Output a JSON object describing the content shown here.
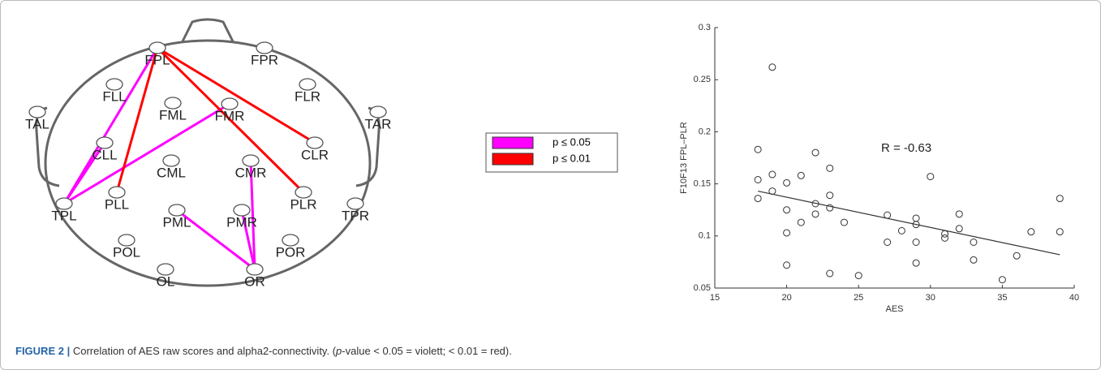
{
  "diagram": {
    "nodes": [
      {
        "label": "FPL"
      },
      {
        "label": "FPR"
      },
      {
        "label": "FLL"
      },
      {
        "label": "FLR"
      },
      {
        "label": "FML"
      },
      {
        "label": "FMR"
      },
      {
        "label": "TAL"
      },
      {
        "label": "TAR"
      },
      {
        "label": "CLL"
      },
      {
        "label": "CLR"
      },
      {
        "label": "CML"
      },
      {
        "label": "CMR"
      },
      {
        "label": "TPL"
      },
      {
        "label": "PLL"
      },
      {
        "label": "PLR"
      },
      {
        "label": "TPR"
      },
      {
        "label": "PML"
      },
      {
        "label": "PMR"
      },
      {
        "label": "POL"
      },
      {
        "label": "POR"
      },
      {
        "label": "OL"
      },
      {
        "label": "OR"
      }
    ],
    "legend": [
      {
        "label": "p ≤ 0.05",
        "color": "#ff00ff",
        "edges": [
          [
            "FPL",
            "TPL"
          ],
          [
            "CLL",
            "TPL"
          ],
          [
            "TPL",
            "FMR"
          ],
          [
            "PML",
            "OR"
          ],
          [
            "PMR",
            "OR"
          ],
          [
            "CMR",
            "OR"
          ]
        ]
      },
      {
        "label": "p ≤ 0.01",
        "color": "#ff0000",
        "edges": [
          [
            "FPL",
            "PLL"
          ],
          [
            "FPL",
            "CLR"
          ],
          [
            "FPL",
            "PLR"
          ]
        ]
      }
    ]
  },
  "chart_data": {
    "type": "scatter",
    "x_label": "AES",
    "y_label": "F10F13 FPL–PLR",
    "annotation": "R = -0.63",
    "x": [
      18,
      18,
      18,
      19,
      19,
      19,
      20,
      20,
      20,
      20,
      21,
      21,
      22,
      22,
      22,
      23,
      23,
      23,
      23,
      24,
      25,
      27,
      27,
      28,
      29,
      29,
      29,
      29,
      30,
      31,
      31,
      32,
      32,
      33,
      33,
      35,
      36,
      37,
      39,
      39
    ],
    "values": [
      0.183,
      0.154,
      0.136,
      0.262,
      0.159,
      0.143,
      0.151,
      0.125,
      0.103,
      0.072,
      0.158,
      0.113,
      0.18,
      0.131,
      0.121,
      0.165,
      0.139,
      0.127,
      0.064,
      0.113,
      0.062,
      0.12,
      0.094,
      0.105,
      0.117,
      0.111,
      0.094,
      0.074,
      0.157,
      0.102,
      0.098,
      0.121,
      0.107,
      0.094,
      0.077,
      0.058,
      0.081,
      0.104,
      0.136,
      0.104
    ],
    "fit": {
      "x": [
        18,
        39
      ],
      "values": [
        0.143,
        0.082
      ]
    },
    "xlim": [
      15,
      40
    ],
    "xticks": [
      15,
      20,
      25,
      30,
      35,
      40
    ],
    "ylim": [
      0.05,
      0.3
    ],
    "yticks": [
      0.05,
      0.1,
      0.15,
      0.2,
      0.25,
      0.3
    ],
    "color": "#333333"
  },
  "caption": {
    "label": "FIGURE 2 |",
    "parts": [
      "Correlation of AES raw scores and alpha2-connectivity. (",
      "p",
      "-value < 0.05 = violett; < 0.01 = red)."
    ]
  }
}
